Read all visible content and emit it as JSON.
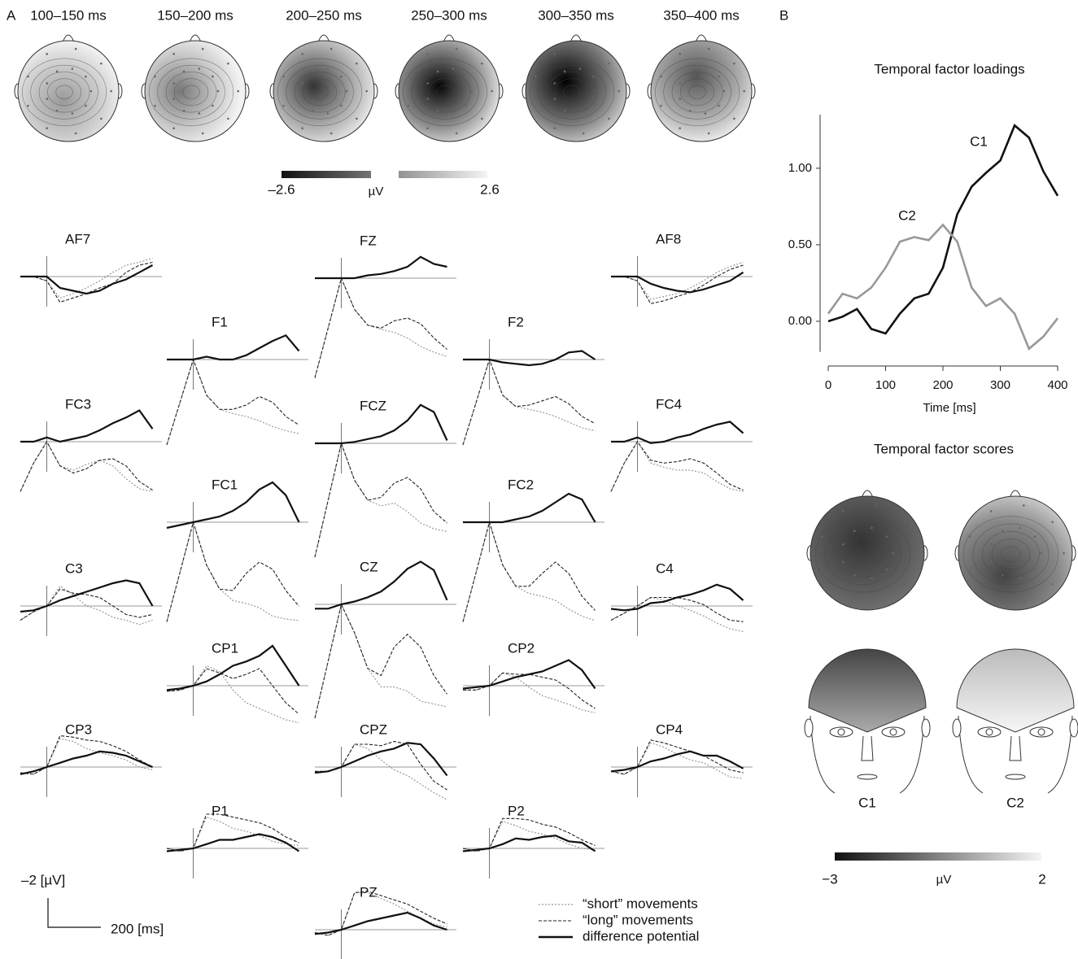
{
  "panel_labels": [
    "A",
    "B"
  ],
  "topomaps": {
    "windows": [
      "100–150 ms",
      "150–200 ms",
      "200–250 ms",
      "250–300 ms",
      "300–350 ms",
      "350–400 ms"
    ],
    "colorbar": {
      "min": "–2.6",
      "unit": "µV",
      "max": "2.6"
    }
  },
  "erp": {
    "x": [
      -100,
      -50,
      0,
      50,
      100,
      150,
      200,
      250,
      300,
      350,
      400
    ],
    "series_names": [
      "“short” movements",
      "“long” movements",
      "difference potential"
    ],
    "scale": {
      "amplitude": "–2 [µV]",
      "time": "200 [ms]"
    },
    "channels": [
      {
        "label": "AF7",
        "short": [
          0,
          0,
          0.3,
          1.5,
          1.2,
          0.8,
          0.3,
          -0.3,
          -0.8,
          -1,
          -1.3
        ],
        "long": [
          0,
          0,
          0.3,
          1.8,
          1.5,
          1.2,
          0.8,
          0.5,
          -0.3,
          -0.8,
          -1
        ],
        "diff": [
          0,
          0,
          0,
          0.8,
          1,
          1.2,
          1,
          0.5,
          0.2,
          -0.3,
          -0.8
        ]
      },
      {
        "label": "FZ",
        "short": [
          7,
          3.5,
          0,
          2.2,
          3.3,
          3.6,
          3.8,
          4.2,
          4.8,
          5.2,
          5.5
        ],
        "long": [
          7,
          3.5,
          0,
          2.2,
          3.3,
          3.5,
          3,
          2.8,
          3.2,
          4.2,
          5
        ],
        "diff": [
          0,
          0,
          0,
          0,
          -0.2,
          -0.3,
          -0.5,
          -0.8,
          -1.5,
          -1,
          -0.8
        ]
      },
      {
        "label": "AF8",
        "short": [
          0,
          0,
          0.3,
          1.6,
          1.4,
          1.2,
          0.8,
          0.3,
          -0.3,
          -0.7,
          -1
        ],
        "long": [
          0,
          0,
          0.3,
          1.9,
          1.7,
          1.4,
          1.1,
          0.6,
          0,
          -0.5,
          -0.8
        ],
        "diff": [
          0,
          0,
          0,
          0.5,
          0.8,
          1,
          1.1,
          0.9,
          0.6,
          0.3,
          -0.3
        ]
      },
      {
        "label": "F1",
        "short": [
          6,
          3,
          0,
          2.5,
          3.5,
          3.8,
          4,
          4.3,
          4.7,
          5,
          5.2
        ],
        "long": [
          6,
          3,
          0,
          2.5,
          3.5,
          3.5,
          3.2,
          2.6,
          3,
          4,
          4.6
        ],
        "diff": [
          0,
          0,
          0,
          -0.2,
          0,
          0,
          -0.3,
          -0.8,
          -1.3,
          -1.7,
          -0.6
        ]
      },
      {
        "label": "F2",
        "short": [
          6,
          3,
          0,
          2.5,
          3.3,
          3.5,
          3.7,
          4,
          4.4,
          4.8,
          5
        ],
        "long": [
          6,
          3,
          0,
          2.5,
          3.3,
          3.2,
          2.9,
          2.6,
          3.1,
          4,
          4.5
        ],
        "diff": [
          0,
          0,
          0,
          0.2,
          0.3,
          0.4,
          0.3,
          0,
          -0.5,
          -0.6,
          0
        ]
      },
      {
        "label": "FC3",
        "short": [
          3.5,
          1.5,
          0,
          1.7,
          2,
          1.6,
          1.3,
          1.7,
          2.6,
          3.3,
          3.5
        ],
        "long": [
          3.5,
          1.5,
          0,
          1.7,
          2.2,
          1.9,
          1.3,
          1.2,
          1.7,
          2.8,
          3.4
        ],
        "diff": [
          0,
          0,
          -0.3,
          0,
          -0.2,
          -0.4,
          -0.8,
          -1.3,
          -1.7,
          -2.2,
          -0.9
        ]
      },
      {
        "label": "FCZ",
        "short": [
          8,
          4,
          0,
          2.6,
          4,
          4.4,
          4.2,
          4.8,
          5.6,
          6,
          6.2
        ],
        "long": [
          8,
          4,
          0,
          2.6,
          4,
          3.8,
          2.8,
          2.4,
          3.2,
          4.8,
          5.6
        ],
        "diff": [
          0,
          0,
          0,
          -0.1,
          -0.3,
          -0.5,
          -0.9,
          -1.6,
          -2.7,
          -2.2,
          -0.2
        ]
      },
      {
        "label": "FC4",
        "short": [
          3.5,
          1.5,
          0,
          1.5,
          1.8,
          2,
          2,
          2.2,
          2.8,
          3.3,
          3.5
        ],
        "long": [
          3.5,
          1.5,
          0,
          1.3,
          1.5,
          1.4,
          1.2,
          1.5,
          2.2,
          3,
          3.4
        ],
        "diff": [
          0,
          0,
          -0.3,
          0.1,
          0,
          -0.3,
          -0.5,
          -0.9,
          -1.2,
          -1.4,
          -0.6
        ]
      },
      {
        "label": "FC1",
        "short": [
          7,
          3.5,
          0,
          3,
          4.7,
          5.5,
          5.7,
          6,
          6.6,
          6.8,
          6.9
        ],
        "long": [
          7,
          3.5,
          0,
          3,
          4.7,
          4.8,
          3.6,
          2.8,
          3.3,
          4.8,
          5.9
        ],
        "diff": [
          0.4,
          0.2,
          0,
          -0.2,
          -0.4,
          -0.8,
          -1.4,
          -2.3,
          -2.8,
          -1.9,
          0
        ]
      },
      {
        "label": "FC2",
        "short": [
          7,
          3.5,
          0,
          3,
          4.5,
          5,
          5.2,
          5.5,
          6.1,
          6.6,
          6.9
        ],
        "long": [
          7,
          3.5,
          0,
          3,
          4.5,
          4.5,
          3.6,
          2.8,
          3.6,
          5.2,
          6.2
        ],
        "diff": [
          0,
          0,
          0,
          0,
          -0.2,
          -0.4,
          -0.8,
          -1.4,
          -2,
          -1.6,
          0
        ]
      },
      {
        "label": "C3",
        "short": [
          1,
          0.4,
          0,
          -1.4,
          -0.8,
          0,
          0.3,
          0.8,
          1,
          1.3,
          1
        ],
        "long": [
          1,
          0.4,
          0,
          -1.2,
          -0.9,
          -0.8,
          -0.6,
          0,
          0.6,
          0.8,
          0.6
        ],
        "diff": [
          0.4,
          0.3,
          0,
          -0.4,
          -0.7,
          -1,
          -1.3,
          -1.6,
          -1.8,
          -1.6,
          0
        ]
      },
      {
        "label": "CZ",
        "short": [
          8,
          4,
          0,
          2,
          4.5,
          5.8,
          5.8,
          6.1,
          6.8,
          7,
          7.2
        ],
        "long": [
          8,
          4,
          0,
          2,
          4.5,
          5,
          3,
          2.1,
          3,
          5,
          6.3
        ],
        "diff": [
          0.3,
          0.3,
          0,
          -0.2,
          -0.5,
          -0.9,
          -1.6,
          -2.5,
          -3,
          -2.4,
          -0.3
        ]
      },
      {
        "label": "C4",
        "short": [
          1,
          0.5,
          0,
          -0.6,
          -0.4,
          0,
          0.3,
          0.7,
          1.2,
          1.6,
          1.8
        ],
        "long": [
          1,
          0.5,
          0,
          -0.6,
          -0.6,
          -0.6,
          -0.4,
          -0.1,
          0.5,
          1,
          1.1
        ],
        "diff": [
          0.2,
          0.3,
          0.2,
          -0.2,
          -0.3,
          -0.6,
          -0.8,
          -1.1,
          -1.5,
          -1.2,
          -0.4
        ]
      },
      {
        "label": "CP1",
        "short": [
          0.4,
          0.3,
          0,
          -1.4,
          -1,
          0.3,
          1.2,
          1.6,
          2,
          2.4,
          2.6
        ],
        "long": [
          0.4,
          0.3,
          0,
          -1.2,
          -0.9,
          -0.5,
          -0.8,
          -1.2,
          0,
          1.2,
          2
        ],
        "diff": [
          0.3,
          0.2,
          0,
          -0.3,
          -0.8,
          -1.4,
          -1.7,
          -2.1,
          -2.8,
          -1.4,
          0
        ]
      },
      {
        "label": "CP2",
        "short": [
          0.3,
          0.3,
          0,
          -0.9,
          -0.6,
          0.1,
          0.7,
          1,
          1.3,
          1.7,
          1.9
        ],
        "long": [
          0.3,
          0.3,
          0,
          -0.9,
          -0.8,
          -0.8,
          -0.6,
          -0.4,
          0.2,
          1,
          1.6
        ],
        "diff": [
          0.2,
          0.1,
          0,
          -0.3,
          -0.6,
          -0.8,
          -1,
          -1.4,
          -1.8,
          -1.1,
          0.2
        ]
      },
      {
        "label": "CP3",
        "short": [
          0.4,
          0.5,
          0,
          -2,
          -1.8,
          -1.3,
          -1,
          -0.8,
          -0.5,
          0,
          0.2
        ],
        "long": [
          0.4,
          0.5,
          0,
          -2.2,
          -2.1,
          -1.9,
          -1.8,
          -1.5,
          -1.1,
          -0.5,
          0
        ],
        "diff": [
          0.5,
          0.3,
          0,
          -0.3,
          -0.6,
          -0.8,
          -1.1,
          -1,
          -0.8,
          -0.4,
          0
        ]
      },
      {
        "label": "CPZ",
        "short": [
          0.3,
          0.3,
          0,
          -1.6,
          -1.3,
          -0.5,
          0.2,
          0.6,
          1.2,
          1.8,
          2.3
        ],
        "long": [
          0.3,
          0.3,
          0,
          -1.6,
          -1.6,
          -1.5,
          -1.8,
          -1.6,
          -0.2,
          1,
          1.6
        ],
        "diff": [
          0.4,
          0.3,
          0,
          -0.4,
          -0.8,
          -1.1,
          -1.3,
          -1.7,
          -1.6,
          -0.6,
          0.6
        ]
      },
      {
        "label": "CP4",
        "short": [
          0.3,
          0.5,
          0,
          -1.7,
          -1.4,
          -0.9,
          -0.5,
          -0.3,
          0.2,
          0.7,
          0.8
        ],
        "long": [
          0.3,
          0.5,
          0,
          -1.9,
          -1.7,
          -1.4,
          -1.1,
          -0.8,
          -0.3,
          0.2,
          0.4
        ],
        "diff": [
          0.3,
          0.2,
          0,
          -0.4,
          -0.6,
          -0.9,
          -1.1,
          -0.8,
          -0.8,
          -0.4,
          0.1
        ]
      },
      {
        "label": "P1",
        "short": [
          0,
          0.2,
          0,
          -2.2,
          -1.9,
          -1.4,
          -1.2,
          -0.9,
          -0.5,
          -0.3,
          -0.2
        ],
        "long": [
          0,
          0.2,
          0,
          -2.4,
          -2.4,
          -2.2,
          -2,
          -1.8,
          -1.4,
          -0.8,
          -0.4
        ],
        "diff": [
          0.2,
          0.1,
          0,
          -0.3,
          -0.6,
          -0.6,
          -0.8,
          -1,
          -0.8,
          -0.4,
          0.2
        ]
      },
      {
        "label": "P2",
        "short": [
          0,
          0.2,
          0,
          -1.9,
          -1.6,
          -1.2,
          -1,
          -0.7,
          -0.3,
          0,
          0.1
        ],
        "long": [
          0,
          0.2,
          0,
          -2.1,
          -2.1,
          -2,
          -1.7,
          -1.5,
          -1.1,
          -0.6,
          -0.2
        ],
        "diff": [
          0.2,
          0.1,
          0,
          -0.3,
          -0.7,
          -0.6,
          -0.8,
          -0.9,
          -0.5,
          -0.4,
          0.2
        ]
      },
      {
        "label": "PZ",
        "short": [
          0.2,
          0.4,
          0,
          -2.6,
          -2.6,
          -2.2,
          -1.8,
          -1.3,
          -0.8,
          -0.4,
          -0.2
        ],
        "long": [
          0.2,
          0.4,
          0,
          -2.6,
          -2.7,
          -2.4,
          -2.1,
          -1.8,
          -1.3,
          -0.8,
          -0.4
        ],
        "diff": [
          0.3,
          0.2,
          0,
          -0.3,
          -0.6,
          -0.8,
          -1,
          -1.2,
          -0.8,
          -0.3,
          0
        ]
      }
    ]
  },
  "chart_data": {
    "type": "line",
    "title": "Temporal factor loadings",
    "x_label": "Time [ms]",
    "x": [
      0,
      25,
      50,
      75,
      100,
      125,
      150,
      175,
      200,
      225,
      250,
      275,
      300,
      325,
      350,
      375,
      400
    ],
    "series": [
      {
        "name": "C1",
        "color": "#111111",
        "values": [
          0,
          0.03,
          0.08,
          -0.05,
          -0.08,
          0.05,
          0.15,
          0.18,
          0.35,
          0.7,
          0.88,
          0.97,
          1.05,
          1.28,
          1.2,
          0.98,
          0.82
        ]
      },
      {
        "name": "C2",
        "color": "#999999",
        "values": [
          0.05,
          0.18,
          0.15,
          0.22,
          0.35,
          0.52,
          0.55,
          0.53,
          0.63,
          0.52,
          0.22,
          0.1,
          0.15,
          0.05,
          -0.18,
          -0.1,
          0.02
        ]
      }
    ],
    "xlim": [
      0,
      400
    ],
    "xticks": [
      0,
      100,
      200,
      300,
      400
    ],
    "ylim": [
      -0.2,
      1.35
    ],
    "yticks": [
      {
        "value": 0,
        "label": "0.00"
      },
      {
        "value": 0.5,
        "label": "0.50"
      },
      {
        "value": 1,
        "label": "1.00"
      }
    ]
  },
  "scores": {
    "title": "Temporal factor scores",
    "components": [
      "C1",
      "C2"
    ],
    "colorbar": {
      "min": "−3",
      "unit": "µV",
      "max": "2"
    }
  }
}
